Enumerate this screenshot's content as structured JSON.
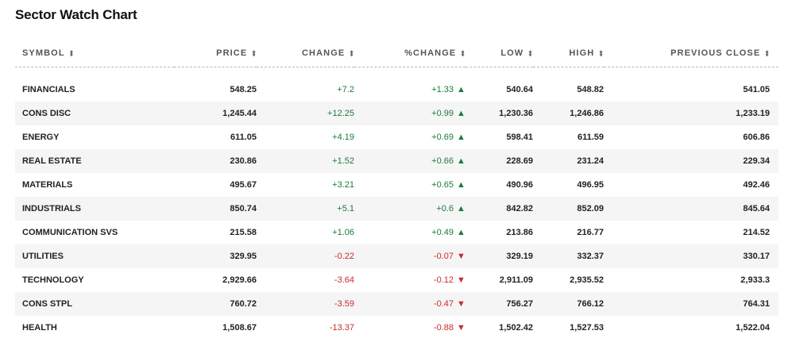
{
  "title": "Sector Watch Chart",
  "columns": [
    "SYMBOL",
    "PRICE",
    "CHANGE",
    "%CHANGE",
    "LOW",
    "HIGH",
    "PREVIOUS CLOSE"
  ],
  "sort_glyph": "⬍",
  "rows": [
    {
      "symbol": "FINANCIALS",
      "price": "548.25",
      "change": "+7.2",
      "pct": "+1.33",
      "dir": "up",
      "low": "540.64",
      "high": "548.82",
      "prev": "541.05"
    },
    {
      "symbol": "CONS DISC",
      "price": "1,245.44",
      "change": "+12.25",
      "pct": "+0.99",
      "dir": "up",
      "low": "1,230.36",
      "high": "1,246.86",
      "prev": "1,233.19"
    },
    {
      "symbol": "ENERGY",
      "price": "611.05",
      "change": "+4.19",
      "pct": "+0.69",
      "dir": "up",
      "low": "598.41",
      "high": "611.59",
      "prev": "606.86"
    },
    {
      "symbol": "REAL ESTATE",
      "price": "230.86",
      "change": "+1.52",
      "pct": "+0.66",
      "dir": "up",
      "low": "228.69",
      "high": "231.24",
      "prev": "229.34"
    },
    {
      "symbol": "MATERIALS",
      "price": "495.67",
      "change": "+3.21",
      "pct": "+0.65",
      "dir": "up",
      "low": "490.96",
      "high": "496.95",
      "prev": "492.46"
    },
    {
      "symbol": "INDUSTRIALS",
      "price": "850.74",
      "change": "+5.1",
      "pct": "+0.6",
      "dir": "up",
      "low": "842.82",
      "high": "852.09",
      "prev": "845.64"
    },
    {
      "symbol": "COMMUNICATION SVS",
      "price": "215.58",
      "change": "+1.06",
      "pct": "+0.49",
      "dir": "up",
      "low": "213.86",
      "high": "216.77",
      "prev": "214.52"
    },
    {
      "symbol": "UTILITIES",
      "price": "329.95",
      "change": "-0.22",
      "pct": "-0.07",
      "dir": "down",
      "low": "329.19",
      "high": "332.37",
      "prev": "330.17"
    },
    {
      "symbol": "TECHNOLOGY",
      "price": "2,929.66",
      "change": "-3.64",
      "pct": "-0.12",
      "dir": "down",
      "low": "2,911.09",
      "high": "2,935.52",
      "prev": "2,933.3"
    },
    {
      "symbol": "CONS STPL",
      "price": "760.72",
      "change": "-3.59",
      "pct": "-0.47",
      "dir": "down",
      "low": "756.27",
      "high": "766.12",
      "prev": "764.31"
    },
    {
      "symbol": "HEALTH",
      "price": "1,508.67",
      "change": "-13.37",
      "pct": "-0.88",
      "dir": "down",
      "low": "1,502.42",
      "high": "1,527.53",
      "prev": "1,522.04"
    }
  ],
  "colors": {
    "up": "#1c7a3e",
    "down": "#cc2a2a",
    "stripe": "#f5f5f5"
  },
  "icons": {
    "up": "triangle-up-icon",
    "down": "triangle-down-icon",
    "sort": "sort-icon"
  }
}
